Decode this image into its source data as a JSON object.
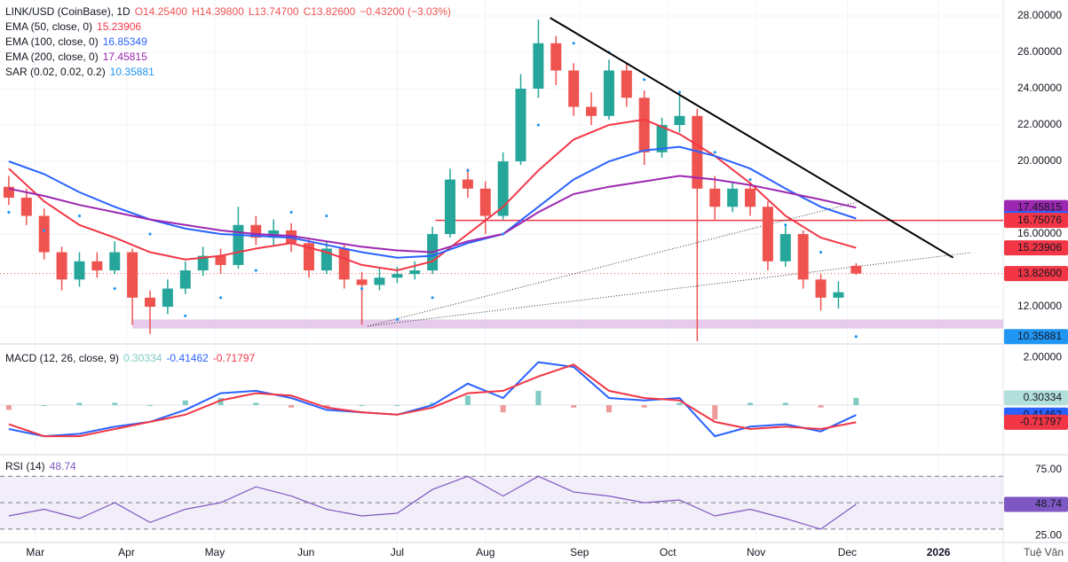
{
  "chart_data": {
    "type": "candlestick",
    "header": {
      "symbol": "LINK/USD (CoinBase), 1D",
      "open": "O14.25400",
      "high": "H14.39800",
      "low": "L13.74700",
      "close": "C13.82600",
      "change": "−0.43200 (−3.03%)"
    },
    "xlim": [
      0,
      341
    ],
    "xticks": [
      {
        "value": 12,
        "label": "Mar"
      },
      {
        "value": 43,
        "label": "Apr"
      },
      {
        "value": 73,
        "label": "May"
      },
      {
        "value": 104,
        "label": "Jun"
      },
      {
        "value": 135,
        "label": "Jul"
      },
      {
        "value": 165,
        "label": "Aug"
      },
      {
        "value": 197,
        "label": "Sep"
      },
      {
        "value": 227,
        "label": "Oct"
      },
      {
        "value": 257,
        "label": "Nov"
      },
      {
        "value": 288,
        "label": "Dec"
      },
      {
        "value": 319,
        "label": "2026"
      }
    ],
    "ylim": [
      10.1,
      28.88
    ],
    "yticks": [
      {
        "value": 12,
        "label": "12.00000"
      },
      {
        "value": 16,
        "label": "16.00000"
      },
      {
        "value": 20,
        "label": "20.00000"
      },
      {
        "value": 22,
        "label": "22.00000"
      },
      {
        "value": 24,
        "label": "24.00000"
      },
      {
        "value": 26,
        "label": "26.00000"
      },
      {
        "value": 28,
        "label": "28.00000"
      }
    ],
    "up_color": "#26a69a",
    "down_color": "#ef5350",
    "candle_x": [
      3,
      9,
      15,
      21,
      27,
      33,
      39,
      45,
      51,
      57,
      63,
      69,
      75,
      81,
      87,
      93,
      99,
      105,
      111,
      117,
      123,
      129,
      135,
      141,
      147,
      153,
      159,
      165,
      171,
      177,
      183,
      189,
      195,
      201,
      207,
      213,
      219,
      225,
      231,
      237,
      243,
      249,
      255,
      261,
      267,
      273,
      279,
      285,
      291
    ],
    "ohlc": [
      [
        18.6,
        19.2,
        17.6,
        18.0
      ],
      [
        18.0,
        18.5,
        16.5,
        17.0
      ],
      [
        17.0,
        17.4,
        14.6,
        15.0
      ],
      [
        15.0,
        15.3,
        12.9,
        13.5
      ],
      [
        13.5,
        15.0,
        13.1,
        14.5
      ],
      [
        14.5,
        15.0,
        13.6,
        14.0
      ],
      [
        14.0,
        15.6,
        13.8,
        15.0
      ],
      [
        15.0,
        15.2,
        11.0,
        12.5
      ],
      [
        12.5,
        12.9,
        10.5,
        12.0
      ],
      [
        12.0,
        13.5,
        11.6,
        13.0
      ],
      [
        13.0,
        14.5,
        12.7,
        14.0
      ],
      [
        14.0,
        15.3,
        13.7,
        14.8
      ],
      [
        14.8,
        15.2,
        13.8,
        14.3
      ],
      [
        14.3,
        17.5,
        14.1,
        16.5
      ],
      [
        16.5,
        17.0,
        15.4,
        15.8
      ],
      [
        15.8,
        16.8,
        15.4,
        16.2
      ],
      [
        16.2,
        16.6,
        15.0,
        15.5
      ],
      [
        15.5,
        15.8,
        13.6,
        14.0
      ],
      [
        14.0,
        15.6,
        13.8,
        15.2
      ],
      [
        15.2,
        15.4,
        13.0,
        13.5
      ],
      [
        13.5,
        13.9,
        11.0,
        13.2
      ],
      [
        13.2,
        14.1,
        12.9,
        13.6
      ],
      [
        13.6,
        14.2,
        13.3,
        13.8
      ],
      [
        13.8,
        14.5,
        13.5,
        14.0
      ],
      [
        14.0,
        16.4,
        13.8,
        16.0
      ],
      [
        16.0,
        19.6,
        15.8,
        19.0
      ],
      [
        19.0,
        19.6,
        18.0,
        18.5
      ],
      [
        18.5,
        18.9,
        16.0,
        17.0
      ],
      [
        17.0,
        20.5,
        16.8,
        20.0
      ],
      [
        20.0,
        24.8,
        19.8,
        24.0
      ],
      [
        24.0,
        27.8,
        23.5,
        26.5
      ],
      [
        26.5,
        26.9,
        24.2,
        25.0
      ],
      [
        25.0,
        25.4,
        22.5,
        23.0
      ],
      [
        23.0,
        23.8,
        22.0,
        22.5
      ],
      [
        22.5,
        25.6,
        22.3,
        25.0
      ],
      [
        25.0,
        25.4,
        23.0,
        23.5
      ],
      [
        23.5,
        23.9,
        19.8,
        20.5
      ],
      [
        20.5,
        22.4,
        20.2,
        22.0
      ],
      [
        22.0,
        23.6,
        21.6,
        22.5
      ],
      [
        22.5,
        22.9,
        10.1,
        18.5
      ],
      [
        18.5,
        19.2,
        16.8,
        17.5
      ],
      [
        17.5,
        18.9,
        17.2,
        18.5
      ],
      [
        18.5,
        18.8,
        17.0,
        17.5
      ],
      [
        17.5,
        17.8,
        14.0,
        14.5
      ],
      [
        14.5,
        16.5,
        14.2,
        16.0
      ],
      [
        16.0,
        16.2,
        13.0,
        13.5
      ],
      [
        13.5,
        13.8,
        11.8,
        12.5
      ],
      [
        12.5,
        13.4,
        11.9,
        12.8
      ],
      [
        14.254,
        14.398,
        13.747,
        13.826
      ]
    ],
    "x": [
      3,
      15,
      27,
      39,
      51,
      63,
      75,
      87,
      99,
      111,
      123,
      135,
      147,
      159,
      171,
      183,
      195,
      207,
      219,
      231,
      243,
      255,
      267,
      279,
      291
    ],
    "series": [
      {
        "name": "EMA (50, close, 0)",
        "color": "#f23645",
        "values": [
          19.6,
          17.8,
          16.5,
          15.8,
          15.0,
          14.6,
          14.8,
          15.2,
          15.5,
          15.0,
          14.3,
          14.0,
          14.5,
          16.0,
          17.5,
          19.5,
          21.2,
          22.0,
          22.3,
          21.5,
          20.3,
          18.8,
          17.0,
          15.8,
          15.23906
        ]
      },
      {
        "name": "EMA (100, close, 0)",
        "color": "#2962ff",
        "values": [
          20.0,
          19.3,
          18.3,
          17.5,
          16.8,
          16.3,
          16.0,
          15.9,
          15.8,
          15.4,
          15.0,
          14.7,
          14.8,
          15.5,
          16.0,
          17.5,
          19.0,
          20.0,
          20.6,
          20.8,
          20.3,
          19.6,
          18.5,
          17.5,
          16.85349
        ]
      },
      {
        "name": "EMA (200, close, 0)",
        "color": "#9c27b0",
        "values": [
          18.5,
          18.1,
          17.6,
          17.2,
          16.8,
          16.5,
          16.2,
          16.0,
          15.9,
          15.6,
          15.3,
          15.1,
          15.0,
          15.6,
          16.0,
          17.2,
          18.2,
          18.6,
          18.9,
          19.2,
          19.0,
          18.7,
          18.3,
          17.9,
          17.45815
        ]
      }
    ],
    "sar": {
      "name": "SAR (0.02, 0.02, 0.2)",
      "color": "#2196f3",
      "values": [
        17.2,
        16.2,
        17.0,
        13.0,
        16.0,
        11.5,
        12.5,
        14.0,
        17.2,
        17.0,
        13.0,
        11.3,
        12.5,
        19.5,
        16.0,
        22.0,
        26.5,
        26.0,
        24.5,
        23.8,
        20.5,
        19.0,
        16.5,
        15.0,
        10.35881
      ]
    },
    "last_price": {
      "value": 13.826,
      "label": "13.82600"
    },
    "level_line": 16.75076,
    "trendline": {
      "x": [
        187,
        324
      ],
      "y": [
        27.9,
        14.7
      ]
    },
    "dotted_lines": [
      {
        "x": [
          125,
          330
        ],
        "y": [
          10.93,
          14.98
        ]
      },
      {
        "x": [
          125,
          291
        ],
        "y": [
          10.93,
          17.75
        ]
      }
    ],
    "zone": {
      "x": [
        45,
        341
      ],
      "y": [
        10.8,
        11.3
      ]
    },
    "macd": {
      "title": "MACD (12, 26, close, 9)",
      "ylim": [
        -2.04,
        2.49
      ],
      "yticks": [
        {
          "value": 2,
          "label": "2.00000"
        }
      ],
      "series": [
        {
          "color": "#80cbc4",
          "neg_color": "#ef9a9a",
          "values": [
            -0.2,
            0,
            0.1,
            0.1,
            0,
            0.2,
            0.3,
            0.1,
            -0.1,
            -0.1,
            0,
            0,
            0.1,
            0.4,
            -0.3,
            0.6,
            -0.1,
            -0.3,
            -0.1,
            0.1,
            -0.6,
            0.1,
            0.1,
            -0.1,
            0.30334
          ]
        },
        {
          "color": "#2962ff",
          "values": [
            -1.0,
            -1.3,
            -1.2,
            -0.9,
            -0.7,
            -0.2,
            0.5,
            0.6,
            0.3,
            -0.2,
            -0.3,
            -0.4,
            0.0,
            0.9,
            0.3,
            1.8,
            1.6,
            0.3,
            0.2,
            0.3,
            -1.3,
            -0.9,
            -0.8,
            -1.1,
            -0.41462
          ]
        },
        {
          "color": "#f23645",
          "values": [
            -0.8,
            -1.3,
            -1.3,
            -1.0,
            -0.7,
            -0.4,
            0.2,
            0.5,
            0.4,
            -0.1,
            -0.3,
            -0.4,
            -0.1,
            0.5,
            0.6,
            1.2,
            1.7,
            0.6,
            0.3,
            0.2,
            -0.7,
            -1.0,
            -0.9,
            -1.0,
            -0.71797
          ]
        }
      ]
    },
    "rsi": {
      "title": "RSI (14)",
      "color": "#7e57c2",
      "ylim": [
        21.2,
        85.6
      ],
      "yticks": [
        {
          "value": 75,
          "label": "75.00"
        },
        {
          "value": 25,
          "label": "25.00"
        }
      ],
      "bands": [
        70,
        50,
        30
      ],
      "values": [
        40,
        45,
        38,
        50,
        35,
        45,
        50,
        62,
        55,
        45,
        40,
        42,
        60,
        70,
        55,
        70,
        58,
        55,
        50,
        52,
        40,
        45,
        38,
        30,
        48.74
      ]
    },
    "watermark": "Tuệ Văn"
  }
}
